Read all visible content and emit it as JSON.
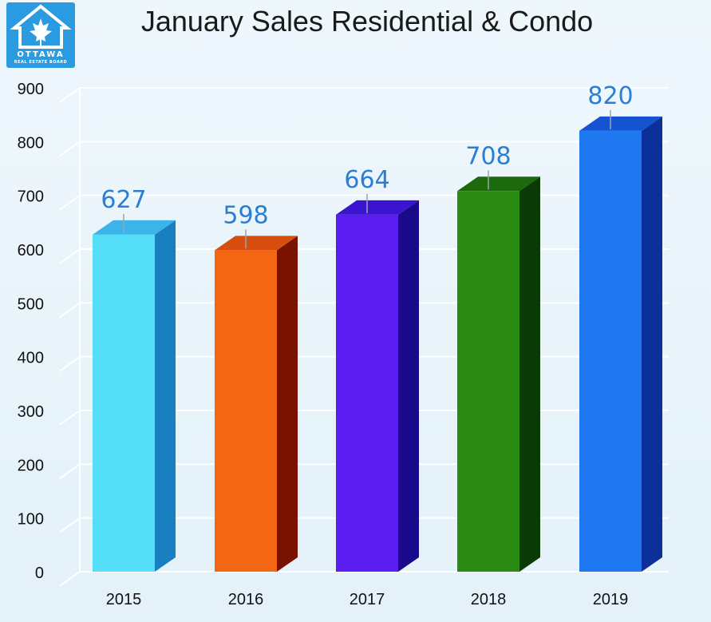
{
  "header": {
    "title": "January Sales Residential & Condo",
    "logo_text": "OTTAWA",
    "logo_subtext": "REAL ESTATE BOARD"
  },
  "chart_data": {
    "type": "bar",
    "title": "January Sales Residential & Condo",
    "xlabel": "",
    "ylabel": "",
    "categories": [
      "2015",
      "2016",
      "2017",
      "2018",
      "2019"
    ],
    "values": [
      627,
      598,
      664,
      708,
      820
    ],
    "data_labels": [
      "627",
      "598",
      "664",
      "708",
      "820"
    ],
    "ylim": [
      0,
      900
    ],
    "yticks": [
      "0",
      "100",
      "200",
      "300",
      "400",
      "500",
      "600",
      "700",
      "800",
      "900"
    ],
    "grid": true,
    "legend": "none",
    "bar_colors": [
      {
        "front": "#55def8",
        "side": "#1a7fc0",
        "top": "#3cb4ea"
      },
      {
        "front": "#f26614",
        "side": "#7a1200",
        "top": "#d84e10"
      },
      {
        "front": "#5a1ef0",
        "side": "#180a8a",
        "top": "#3a14d0"
      },
      {
        "front": "#2a8a12",
        "side": "#0a3a06",
        "top": "#1c6a0c"
      },
      {
        "front": "#1f78f0",
        "side": "#0c2f9a",
        "top": "#1454d0"
      }
    ],
    "label_color": "#2b7ed6"
  }
}
